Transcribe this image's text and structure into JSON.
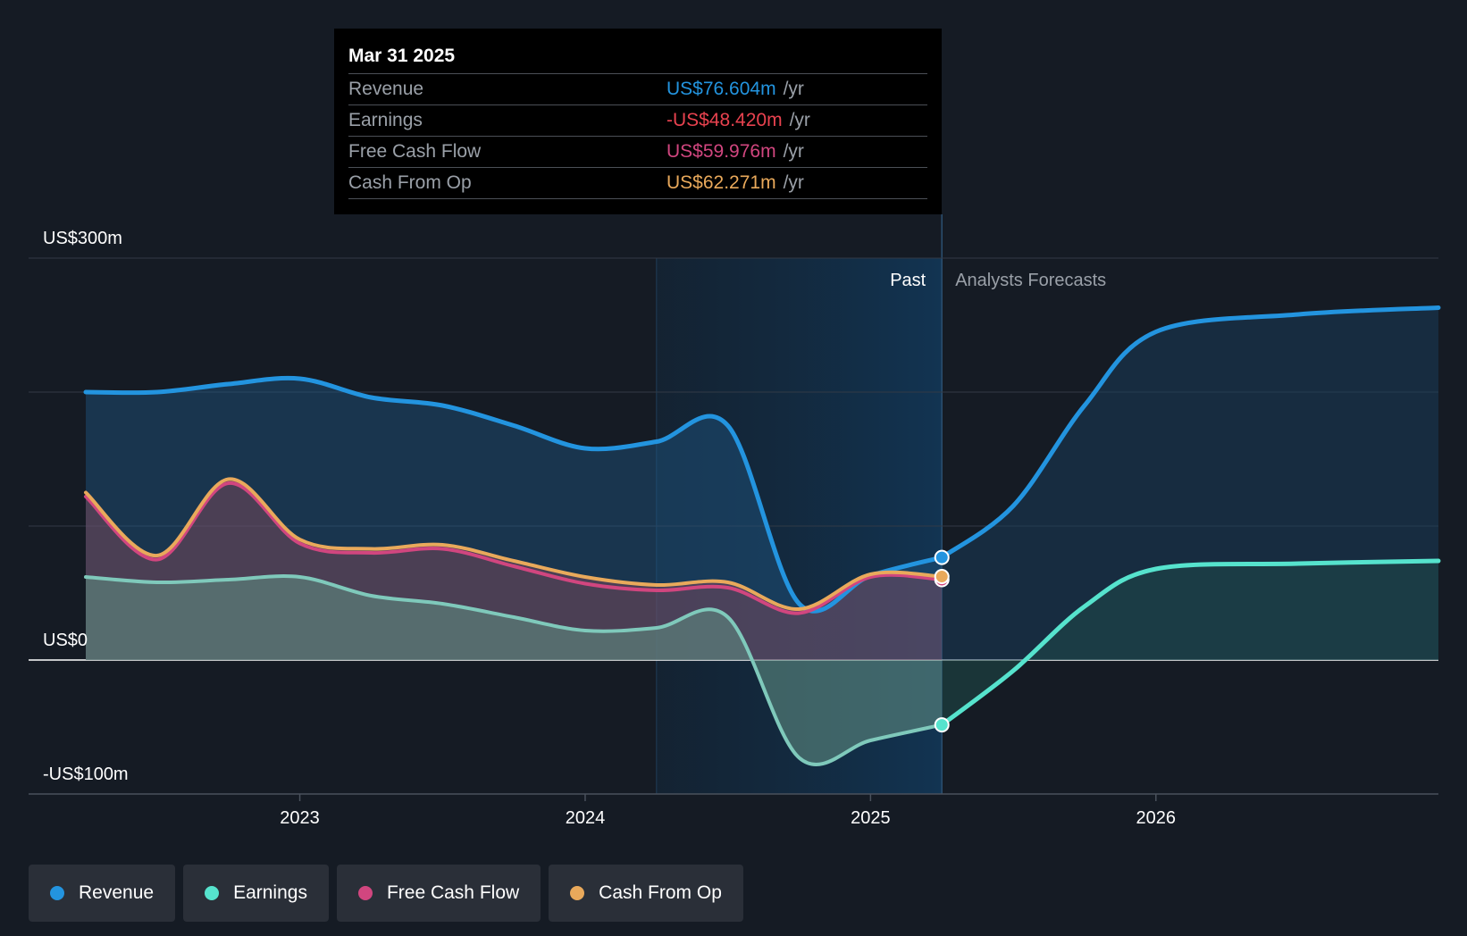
{
  "chart_data": {
    "type": "area",
    "y_labels": [
      "US$300m",
      "US$0",
      "-US$100m"
    ],
    "ylim": [
      -100,
      300
    ],
    "x_ticks": [
      "2023",
      "2024",
      "2025",
      "2026"
    ],
    "section_labels": {
      "past": "Past",
      "forecast": "Analysts Forecasts"
    },
    "series": [
      {
        "name": "Revenue",
        "color": "#2394df",
        "points": [
          [
            2022.25,
            200
          ],
          [
            2022.5,
            200
          ],
          [
            2022.75,
            206
          ],
          [
            2023.0,
            210
          ],
          [
            2023.25,
            196
          ],
          [
            2023.5,
            190
          ],
          [
            2023.75,
            175
          ],
          [
            2024.0,
            158
          ],
          [
            2024.25,
            163
          ],
          [
            2024.5,
            175
          ],
          [
            2024.75,
            42
          ],
          [
            2025.0,
            63
          ],
          [
            2025.25,
            76.6
          ]
        ],
        "forecast": [
          [
            2025.25,
            76.6
          ],
          [
            2025.5,
            115
          ],
          [
            2025.75,
            190
          ],
          [
            2026.0,
            245
          ],
          [
            2026.5,
            258
          ],
          [
            2026.99,
            263
          ]
        ]
      },
      {
        "name": "Earnings",
        "color": "#56e3cd",
        "points": [
          [
            2022.25,
            62
          ],
          [
            2022.5,
            58
          ],
          [
            2022.75,
            60
          ],
          [
            2023.0,
            62
          ],
          [
            2023.25,
            48
          ],
          [
            2023.5,
            42
          ],
          [
            2023.75,
            32
          ],
          [
            2024.0,
            22
          ],
          [
            2024.25,
            24
          ],
          [
            2024.5,
            32
          ],
          [
            2024.75,
            -73
          ],
          [
            2025.0,
            -60
          ],
          [
            2025.25,
            -48.4
          ]
        ],
        "forecast": [
          [
            2025.25,
            -48.4
          ],
          [
            2025.5,
            -8
          ],
          [
            2025.75,
            40
          ],
          [
            2026.0,
            68
          ],
          [
            2026.5,
            72
          ],
          [
            2026.99,
            74
          ]
        ]
      },
      {
        "name": "Free Cash Flow",
        "color": "#d1467f",
        "points": [
          [
            2022.25,
            122
          ],
          [
            2022.5,
            75
          ],
          [
            2022.75,
            132
          ],
          [
            2023.0,
            87
          ],
          [
            2023.25,
            80
          ],
          [
            2023.5,
            83
          ],
          [
            2023.75,
            70
          ],
          [
            2024.0,
            57
          ],
          [
            2024.25,
            52
          ],
          [
            2024.5,
            54
          ],
          [
            2024.75,
            35
          ],
          [
            2025.0,
            62
          ],
          [
            2025.25,
            60
          ]
        ]
      },
      {
        "name": "Cash From Op",
        "color": "#e9a95b",
        "points": [
          [
            2022.25,
            125
          ],
          [
            2022.5,
            78
          ],
          [
            2022.75,
            135
          ],
          [
            2023.0,
            90
          ],
          [
            2023.25,
            83
          ],
          [
            2023.5,
            86
          ],
          [
            2023.75,
            74
          ],
          [
            2024.0,
            62
          ],
          [
            2024.25,
            56
          ],
          [
            2024.5,
            58
          ],
          [
            2024.75,
            38
          ],
          [
            2025.0,
            64
          ],
          [
            2025.25,
            62.3
          ]
        ]
      }
    ]
  },
  "tooltip": {
    "date": "Mar 31 2025",
    "rows": [
      {
        "label": "Revenue",
        "value": "US$76.604m",
        "unit": "/yr",
        "color": "#2394df"
      },
      {
        "label": "Earnings",
        "value": "-US$48.420m",
        "unit": "/yr",
        "color": "#e8424f"
      },
      {
        "label": "Free Cash Flow",
        "value": "US$59.976m",
        "unit": "/yr",
        "color": "#d1467f"
      },
      {
        "label": "Cash From Op",
        "value": "US$62.271m",
        "unit": "/yr",
        "color": "#e9a95b"
      }
    ]
  },
  "legend": [
    {
      "label": "Revenue",
      "color": "#2394df"
    },
    {
      "label": "Earnings",
      "color": "#56e3cd"
    },
    {
      "label": "Free Cash Flow",
      "color": "#d1467f"
    },
    {
      "label": "Cash From Op",
      "color": "#e9a95b"
    }
  ]
}
